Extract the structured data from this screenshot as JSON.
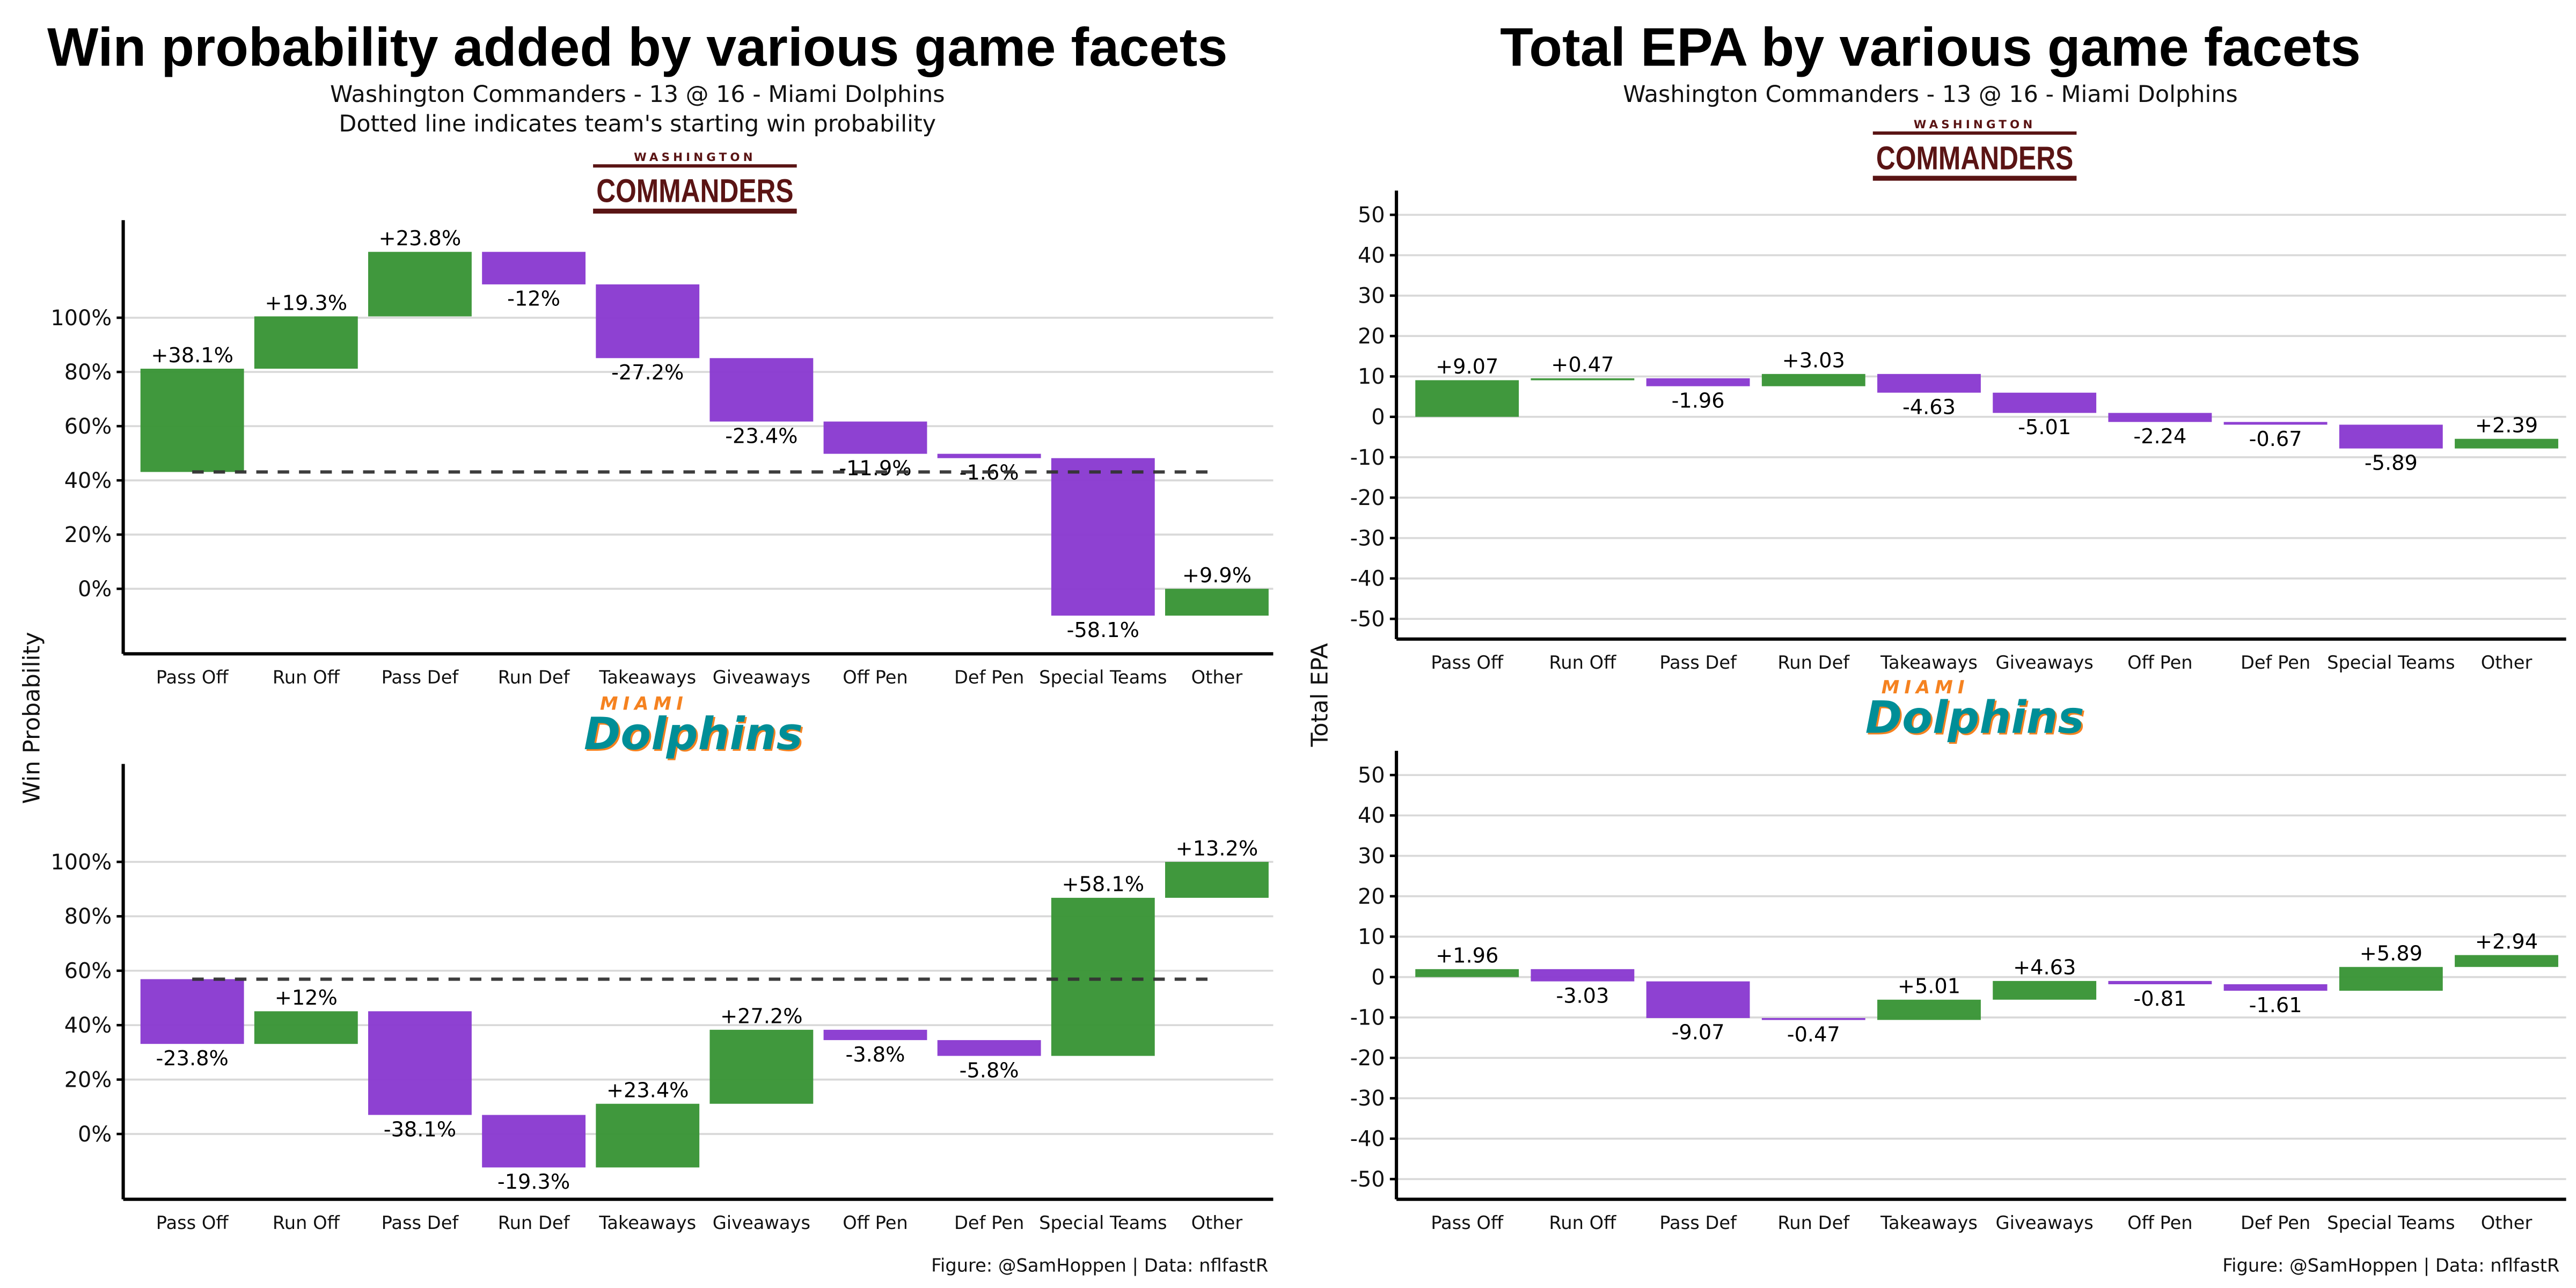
{
  "left": {
    "title": "Win probability added by various game facets",
    "subtitle1": "Washington Commanders - 13 @ 16 - Miami Dolphins",
    "subtitle2": "Dotted line indicates team's starting win probability",
    "ylabel": "Win Probability",
    "footer": "Figure: @SamHoppen | Data: nflfastR"
  },
  "right": {
    "title": "Total EPA by various game facets",
    "subtitle1": "Washington Commanders - 13 @ 16 - Miami Dolphins",
    "ylabel": "Total EPA",
    "footer": "Figure: @SamHoppen | Data: nflfastR"
  },
  "logos": {
    "commanders": {
      "top": "WASHINGTON",
      "main": "COMMANDERS",
      "color": "#5a1414"
    },
    "dolphins": {
      "top": "MIAMI",
      "main": "Dolphins",
      "color": "#008e97",
      "accent": "#f58220"
    }
  },
  "colors": {
    "positive": "#3a9537",
    "negative": "#8a3bd1",
    "start_line": "#333333",
    "grid": "#d9d9d9"
  },
  "chart_data": [
    {
      "type": "bar",
      "subtype": "waterfall",
      "team": "Washington Commanders",
      "metric": "Win Probability",
      "categories": [
        "Pass Off",
        "Run Off",
        "Pass Def",
        "Run Def",
        "Takeaways",
        "Giveaways",
        "Off Pen",
        "Def Pen",
        "Special Teams",
        "Other"
      ],
      "start": 43.1,
      "values": [
        38.1,
        19.3,
        23.8,
        -12,
        -27.2,
        -23.4,
        -11.9,
        -1.6,
        -58.1,
        9.9
      ],
      "value_labels": [
        "+38.1%",
        "+19.3%",
        "+23.8%",
        "-12%",
        "-27.2%",
        "-23.4%",
        "-11.9%",
        "-1.6%",
        "-58.1%",
        "+9.9%"
      ],
      "ylim": [
        -24,
        136
      ],
      "yticks": [
        0,
        20,
        40,
        60,
        80,
        100
      ],
      "ytick_labels": [
        "0%",
        "20%",
        "40%",
        "60%",
        "80%",
        "100%"
      ],
      "show_start_line": true,
      "grid": true
    },
    {
      "type": "bar",
      "subtype": "waterfall",
      "team": "Miami Dolphins",
      "metric": "Win Probability",
      "categories": [
        "Pass Off",
        "Run Off",
        "Pass Def",
        "Run Def",
        "Takeaways",
        "Giveaways",
        "Off Pen",
        "Def Pen",
        "Special Teams",
        "Other"
      ],
      "start": 56.9,
      "values": [
        -23.8,
        12,
        -38.1,
        -19.3,
        23.4,
        27.2,
        -3.8,
        -5.8,
        58.1,
        13.2
      ],
      "value_labels": [
        "-23.8%",
        "+12%",
        "-38.1%",
        "-19.3%",
        "+23.4%",
        "+27.2%",
        "-3.8%",
        "-5.8%",
        "+58.1%",
        "+13.2%"
      ],
      "ylim": [
        -24,
        136
      ],
      "yticks": [
        0,
        20,
        40,
        60,
        80,
        100
      ],
      "ytick_labels": [
        "0%",
        "20%",
        "40%",
        "60%",
        "80%",
        "100%"
      ],
      "show_start_line": true,
      "grid": true
    },
    {
      "type": "bar",
      "subtype": "waterfall",
      "team": "Washington Commanders",
      "metric": "Total EPA",
      "categories": [
        "Pass Off",
        "Run Off",
        "Pass Def",
        "Run Def",
        "Takeaways",
        "Giveaways",
        "Off Pen",
        "Def Pen",
        "Special Teams",
        "Other"
      ],
      "start": 0,
      "values": [
        9.07,
        0.47,
        -1.96,
        3.03,
        -4.63,
        -5.01,
        -2.24,
        -0.67,
        -5.89,
        2.39
      ],
      "value_labels": [
        "+9.07",
        "+0.47",
        "-1.96",
        "+3.03",
        "-4.63",
        "-5.01",
        "-2.24",
        "-0.67",
        "-5.89",
        "+2.39"
      ],
      "ylim": [
        -55,
        56
      ],
      "yticks": [
        -50,
        -40,
        -30,
        -20,
        -10,
        0,
        10,
        20,
        30,
        40,
        50
      ],
      "ytick_labels": [
        "-50",
        "-40",
        "-30",
        "-20",
        "-10",
        "0",
        "10",
        "20",
        "30",
        "40",
        "50"
      ],
      "show_start_line": false,
      "grid": true
    },
    {
      "type": "bar",
      "subtype": "waterfall",
      "team": "Miami Dolphins",
      "metric": "Total EPA",
      "categories": [
        "Pass Off",
        "Run Off",
        "Pass Def",
        "Run Def",
        "Takeaways",
        "Giveaways",
        "Off Pen",
        "Def Pen",
        "Special Teams",
        "Other"
      ],
      "start": 0,
      "values": [
        1.96,
        -3.03,
        -9.07,
        -0.47,
        5.01,
        4.63,
        -0.81,
        -1.61,
        5.89,
        2.94
      ],
      "value_labels": [
        "+1.96",
        "-3.03",
        "-9.07",
        "-0.47",
        "+5.01",
        "+4.63",
        "-0.81",
        "-1.61",
        "+5.89",
        "+2.94"
      ],
      "ylim": [
        -55,
        56
      ],
      "yticks": [
        -50,
        -40,
        -30,
        -20,
        -10,
        0,
        10,
        20,
        30,
        40,
        50
      ],
      "ytick_labels": [
        "-50",
        "-40",
        "-30",
        "-20",
        "-10",
        "0",
        "10",
        "20",
        "30",
        "40",
        "50"
      ],
      "show_start_line": false,
      "grid": true
    }
  ]
}
